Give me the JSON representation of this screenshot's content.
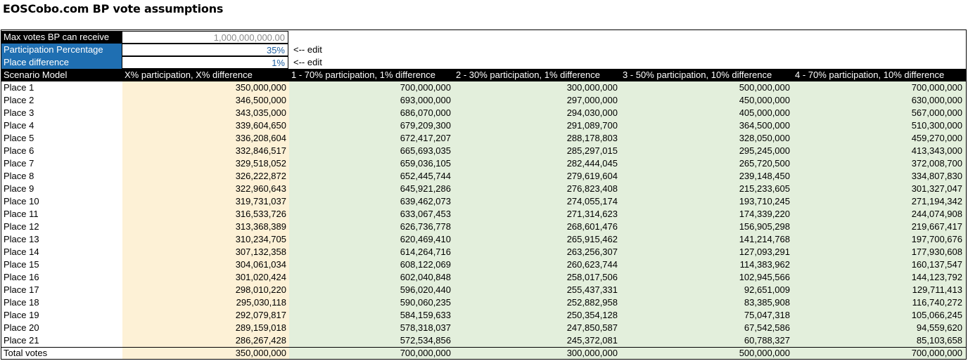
{
  "title": "EOSCobo.com BP vote assumptions",
  "inputs": {
    "max_votes_label": "Max votes BP can receive",
    "max_votes_value": "1,000,000,000.00",
    "participation_label": "Participation Percentage",
    "participation_value": "35%",
    "place_diff_label": "Place difference",
    "place_diff_value": "1%",
    "edit_note": "<-- edit"
  },
  "colors": {
    "header_black": "#000000",
    "label_blue": "#1f6fb2",
    "custom_column": "#fdf1d6",
    "scenario_columns": "#e3efdc",
    "max_votes_text": "#8a8a8a",
    "participation_text": "#1f5fa0"
  },
  "table": {
    "headers": [
      "Scenario Model",
      "X% participation, X% difference",
      "1 - 70% participation, 1% difference",
      "2 - 30% participation, 1% difference",
      "3 - 50% participation, 10% difference",
      "4 - 70% participation, 10% difference"
    ],
    "rows": [
      [
        "Place 1",
        "350,000,000",
        "700,000,000",
        "300,000,000",
        "500,000,000",
        "700,000,000"
      ],
      [
        "Place 2",
        "346,500,000",
        "693,000,000",
        "297,000,000",
        "450,000,000",
        "630,000,000"
      ],
      [
        "Place 3",
        "343,035,000",
        "686,070,000",
        "294,030,000",
        "405,000,000",
        "567,000,000"
      ],
      [
        "Place 4",
        "339,604,650",
        "679,209,300",
        "291,089,700",
        "364,500,000",
        "510,300,000"
      ],
      [
        "Place 5",
        "336,208,604",
        "672,417,207",
        "288,178,803",
        "328,050,000",
        "459,270,000"
      ],
      [
        "Place 6",
        "332,846,517",
        "665,693,035",
        "285,297,015",
        "295,245,000",
        "413,343,000"
      ],
      [
        "Place 7",
        "329,518,052",
        "659,036,105",
        "282,444,045",
        "265,720,500",
        "372,008,700"
      ],
      [
        "Place 8",
        "326,222,872",
        "652,445,744",
        "279,619,604",
        "239,148,450",
        "334,807,830"
      ],
      [
        "Place 9",
        "322,960,643",
        "645,921,286",
        "276,823,408",
        "215,233,605",
        "301,327,047"
      ],
      [
        "Place 10",
        "319,731,037",
        "639,462,073",
        "274,055,174",
        "193,710,245",
        "271,194,342"
      ],
      [
        "Place 11",
        "316,533,726",
        "633,067,453",
        "271,314,623",
        "174,339,220",
        "244,074,908"
      ],
      [
        "Place 12",
        "313,368,389",
        "626,736,778",
        "268,601,476",
        "156,905,298",
        "219,667,417"
      ],
      [
        "Place 13",
        "310,234,705",
        "620,469,410",
        "265,915,462",
        "141,214,768",
        "197,700,676"
      ],
      [
        "Place 14",
        "307,132,358",
        "614,264,716",
        "263,256,307",
        "127,093,291",
        "177,930,608"
      ],
      [
        "Place 15",
        "304,061,034",
        "608,122,069",
        "260,623,744",
        "114,383,962",
        "160,137,547"
      ],
      [
        "Place 16",
        "301,020,424",
        "602,040,848",
        "258,017,506",
        "102,945,566",
        "144,123,792"
      ],
      [
        "Place 17",
        "298,010,220",
        "596,020,440",
        "255,437,331",
        "92,651,009",
        "129,711,413"
      ],
      [
        "Place 18",
        "295,030,118",
        "590,060,235",
        "252,882,958",
        "83,385,908",
        "116,740,272"
      ],
      [
        "Place 19",
        "292,079,817",
        "584,159,633",
        "250,354,128",
        "75,047,318",
        "105,066,245"
      ],
      [
        "Place 20",
        "289,159,018",
        "578,318,037",
        "247,850,587",
        "67,542,586",
        "94,559,620"
      ],
      [
        "Place 21",
        "286,267,428",
        "572,534,856",
        "245,372,081",
        "60,788,327",
        "85,103,658"
      ]
    ],
    "total": [
      "Total votes",
      "350,000,000",
      "700,000,000",
      "300,000,000",
      "500,000,000",
      "700,000,000"
    ]
  }
}
